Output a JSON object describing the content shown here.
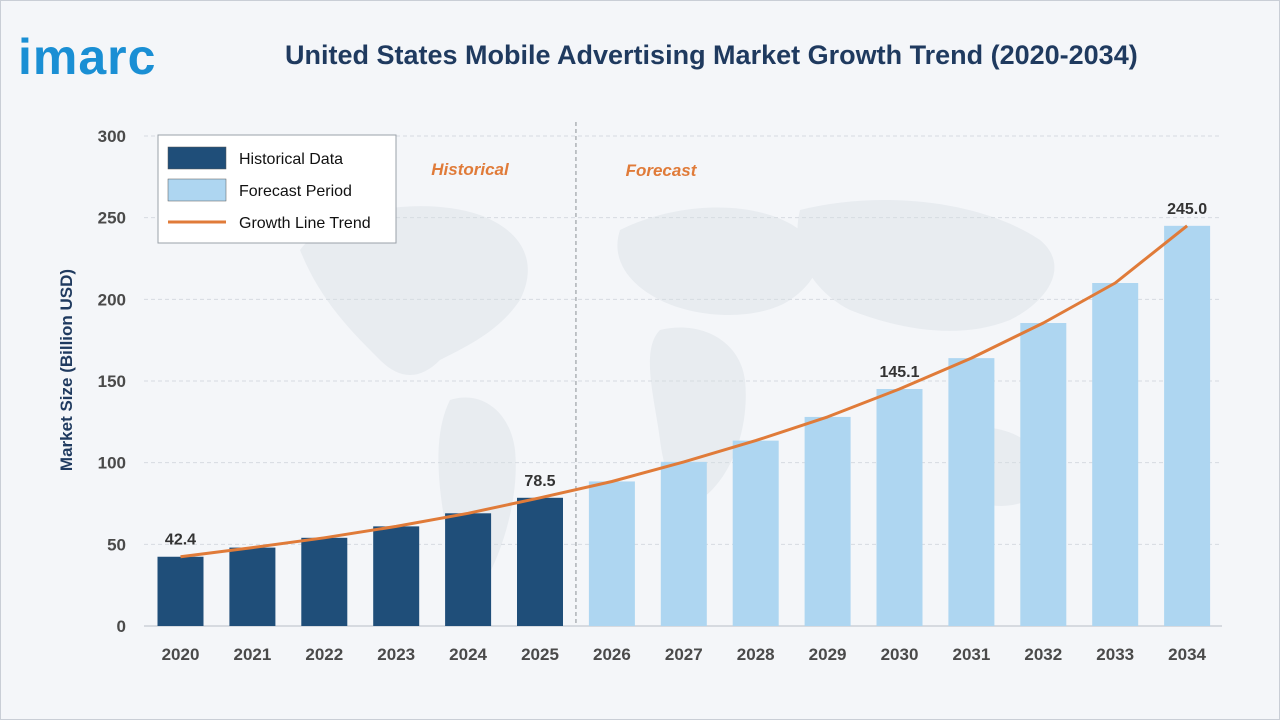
{
  "brand": {
    "logo_text": "imarc"
  },
  "chart_data": {
    "type": "bar",
    "title": "United States Mobile Advertising Market Growth Trend (2020-2034)",
    "ylabel": "Market Size (Billion USD)",
    "xlabel": "",
    "ylim": [
      0,
      300
    ],
    "yticks": [
      0,
      50,
      100,
      150,
      200,
      250,
      300
    ],
    "grid": true,
    "categories": [
      "2020",
      "2021",
      "2022",
      "2023",
      "2024",
      "2025",
      "2026",
      "2027",
      "2028",
      "2029",
      "2030",
      "2031",
      "2032",
      "2033",
      "2034"
    ],
    "series": [
      {
        "name": "Historical Data",
        "color": "#1f4e79",
        "values": [
          42.4,
          48,
          54,
          61,
          69,
          78.5,
          null,
          null,
          null,
          null,
          null,
          null,
          null,
          null,
          null
        ]
      },
      {
        "name": "Forecast Period",
        "color": "#aed6f1",
        "values": [
          null,
          null,
          null,
          null,
          null,
          null,
          88.5,
          100.5,
          113.5,
          128,
          145.1,
          164,
          185.5,
          210,
          245.0
        ]
      },
      {
        "name": "Growth Line Trend",
        "type": "line",
        "color": "#e07b39",
        "values": [
          42.4,
          48,
          54,
          61,
          69,
          78.5,
          88.5,
          100.5,
          113.5,
          128,
          145.1,
          164,
          185.5,
          210,
          245.0
        ]
      }
    ],
    "data_labels": [
      {
        "category": "2020",
        "text": "42.4"
      },
      {
        "category": "2025",
        "text": "78.5"
      },
      {
        "category": "2030",
        "text": "145.1"
      },
      {
        "category": "2034",
        "text": "245.0"
      }
    ],
    "annotations": {
      "historical": "Historical",
      "forecast": "Forecast"
    },
    "legend": {
      "placement": "top-left",
      "items": [
        {
          "label": "Historical Data",
          "kind": "box",
          "color": "#1f4e79"
        },
        {
          "label": "Forecast Period",
          "kind": "box",
          "color": "#aed6f1"
        },
        {
          "label": "Growth Line Trend",
          "kind": "line",
          "color": "#e07b39"
        }
      ]
    }
  }
}
